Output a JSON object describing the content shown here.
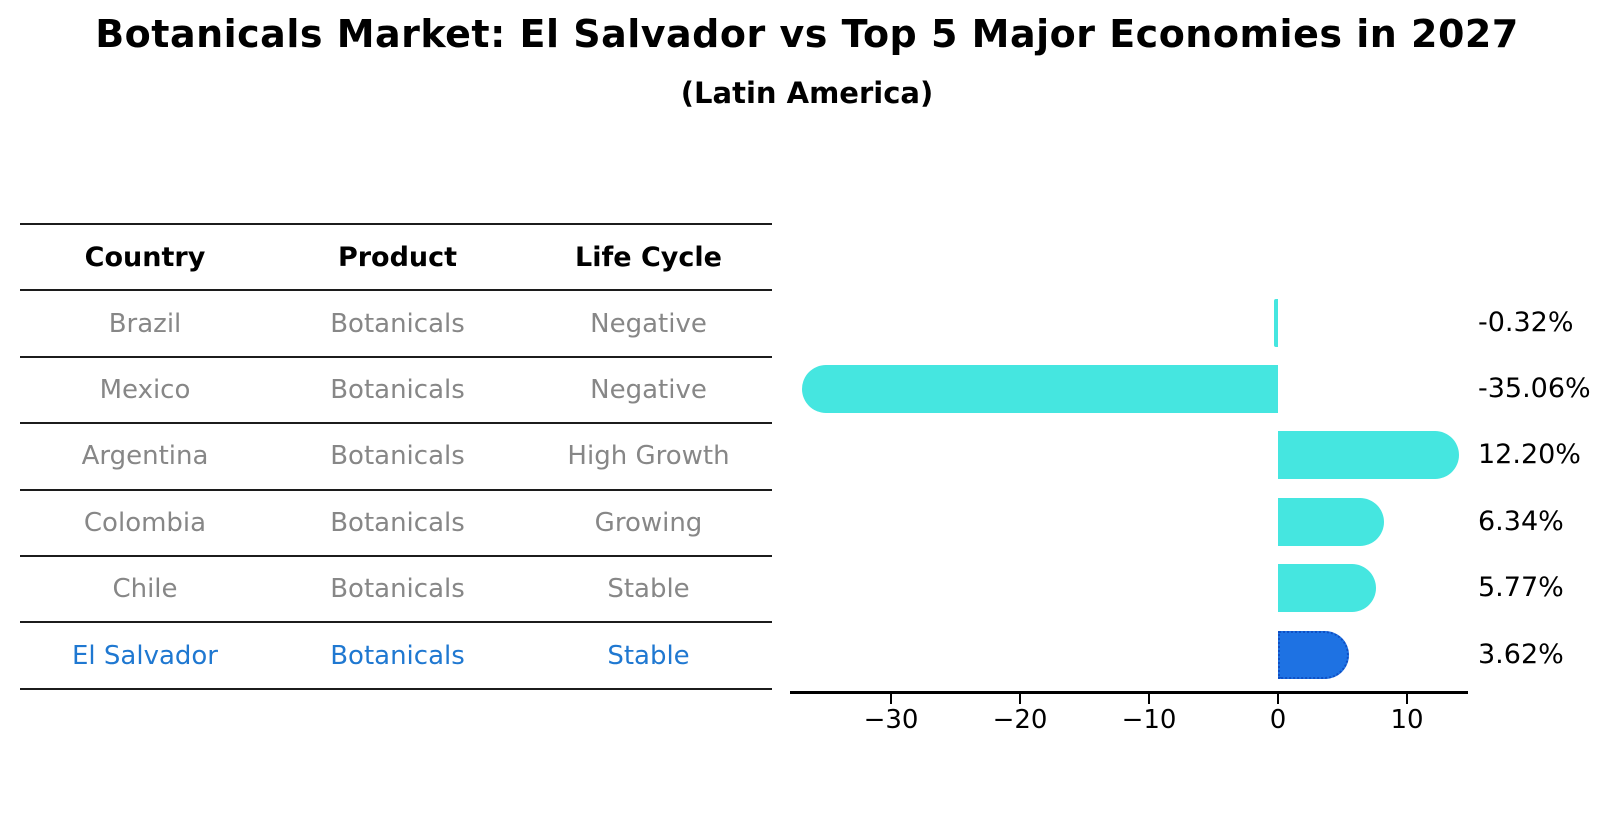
{
  "title": "Botanicals Market: El Salvador vs Top 5 Major Economies in 2027",
  "subtitle": "(Latin America)",
  "table": {
    "headers": [
      "Country",
      "Product",
      "Life Cycle"
    ],
    "rows": [
      {
        "country": "Brazil",
        "product": "Botanicals",
        "life_cycle": "Negative",
        "highlight": false
      },
      {
        "country": "Mexico",
        "product": "Botanicals",
        "life_cycle": "Negative",
        "highlight": false
      },
      {
        "country": "Argentina",
        "product": "Botanicals",
        "life_cycle": "High Growth",
        "highlight": false
      },
      {
        "country": "Colombia",
        "product": "Botanicals",
        "life_cycle": "Growing",
        "highlight": false
      },
      {
        "country": "Chile",
        "product": "Botanicals",
        "life_cycle": "Stable",
        "highlight": false
      },
      {
        "country": "El Salvador",
        "product": "Botanicals",
        "life_cycle": "Stable",
        "highlight": true
      }
    ]
  },
  "chart_data": {
    "type": "bar",
    "orientation": "horizontal",
    "title": "Botanicals Market: El Salvador vs Top 5 Major Economies in 2027",
    "subtitle": "(Latin America)",
    "categories": [
      "Brazil",
      "Mexico",
      "Argentina",
      "Colombia",
      "Chile",
      "El Salvador"
    ],
    "values": [
      -0.32,
      -35.06,
      12.2,
      6.34,
      5.77,
      3.62
    ],
    "value_labels": [
      "-0.32%",
      "-35.06%",
      "12.20%",
      "6.34%",
      "5.77%",
      "3.62%"
    ],
    "x_ticks": [
      -30,
      -20,
      -10,
      0,
      10
    ],
    "x_tick_labels": [
      "−30",
      "−20",
      "−10",
      "0",
      "10"
    ],
    "xlim": [
      -37.8,
      14.7
    ],
    "grid": false,
    "legend": false,
    "highlight_index": 5,
    "bar_color": "#45e6e0",
    "highlight_bar_color": "#1e72e3",
    "highlight_border_color": "#0f4fc4",
    "axis_color": "#000000",
    "label_color": "#000000",
    "table_text_color": "#878787",
    "highlight_text_color": "#1f78d1"
  }
}
